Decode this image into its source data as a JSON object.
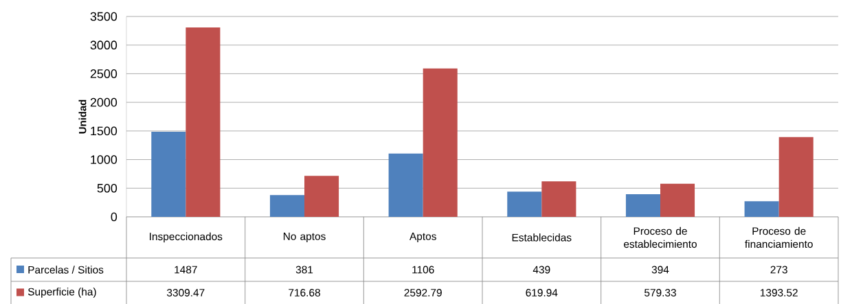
{
  "chart_data": {
    "type": "bar",
    "ylabel": "Unidad",
    "categories": [
      "Inspeccionados",
      "No aptos",
      "Aptos",
      "Establecidas",
      "Proceso de establecimiento",
      "Proceso de financiamiento"
    ],
    "series": [
      {
        "name": "Parcelas / Sitios",
        "color": "#4f81bd",
        "values": [
          1487,
          381,
          1106,
          439,
          394,
          273
        ]
      },
      {
        "name": "Superficie (ha)",
        "color": "#c0504d",
        "values": [
          3309.47,
          716.68,
          2592.79,
          619.94,
          579.33,
          1393.52
        ]
      }
    ],
    "ylim": [
      0,
      3500
    ],
    "yticks": [
      0,
      500,
      1000,
      1500,
      2000,
      2500,
      3000,
      3500
    ],
    "grid": "y",
    "legend": "bottom",
    "data_labels": true
  }
}
